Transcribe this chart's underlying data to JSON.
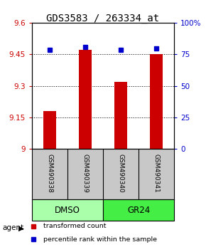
{
  "title": "GDS3583 / 263334_at",
  "samples": [
    "GSM490338",
    "GSM490339",
    "GSM490340",
    "GSM490341"
  ],
  "red_values": [
    9.18,
    9.47,
    9.32,
    9.45
  ],
  "blue_values": [
    78.5,
    80.5,
    78.5,
    79.5
  ],
  "ylim_left": [
    9.0,
    9.6
  ],
  "ylim_right": [
    0,
    100
  ],
  "yticks_left": [
    9.0,
    9.15,
    9.3,
    9.45,
    9.6
  ],
  "ytick_labels_left": [
    "9",
    "9.15",
    "9.3",
    "9.45",
    "9.6"
  ],
  "yticks_right": [
    0,
    25,
    50,
    75,
    100
  ],
  "ytick_labels_right": [
    "0",
    "25",
    "50",
    "75",
    "100%"
  ],
  "hlines": [
    9.15,
    9.3,
    9.45
  ],
  "groups": [
    {
      "label": "DMSO",
      "samples": [
        0,
        1
      ],
      "color": "#AAFFAA"
    },
    {
      "label": "GR24",
      "samples": [
        2,
        3
      ],
      "color": "#44EE44"
    }
  ],
  "bar_color": "#CC0000",
  "dot_color": "#0000CC",
  "bar_width": 0.35,
  "legend_red": "transformed count",
  "legend_blue": "percentile rank within the sample",
  "bg_color_plot": "#FFFFFF",
  "bg_color_sample": "#C8C8C8",
  "title_fontsize": 10
}
